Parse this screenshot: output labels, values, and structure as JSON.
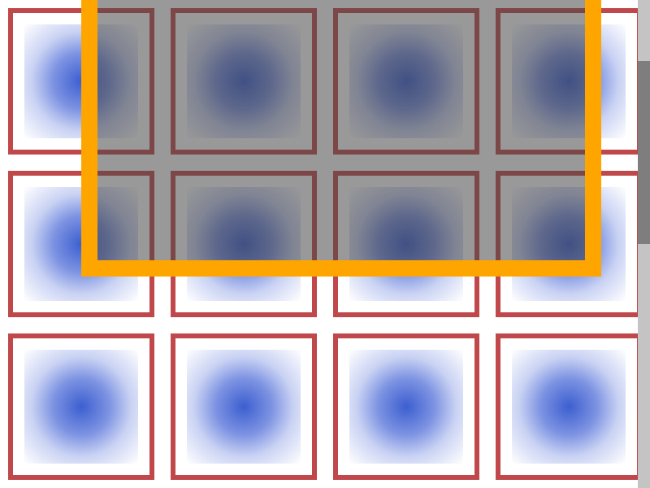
{
  "canvas": {
    "tile_icon": "radial-blue-glow-icon",
    "tile_border_color": "#c0484a",
    "glow_color": "#3c5fd0",
    "overlay_border_color": "#ffa500",
    "overlay_fill": "rgba(70,70,70,0.55)",
    "rows": 3,
    "columns": 4
  },
  "scrollbar": {
    "track_color": "#c4c4c4",
    "thumb_color": "#7e7e7e"
  }
}
